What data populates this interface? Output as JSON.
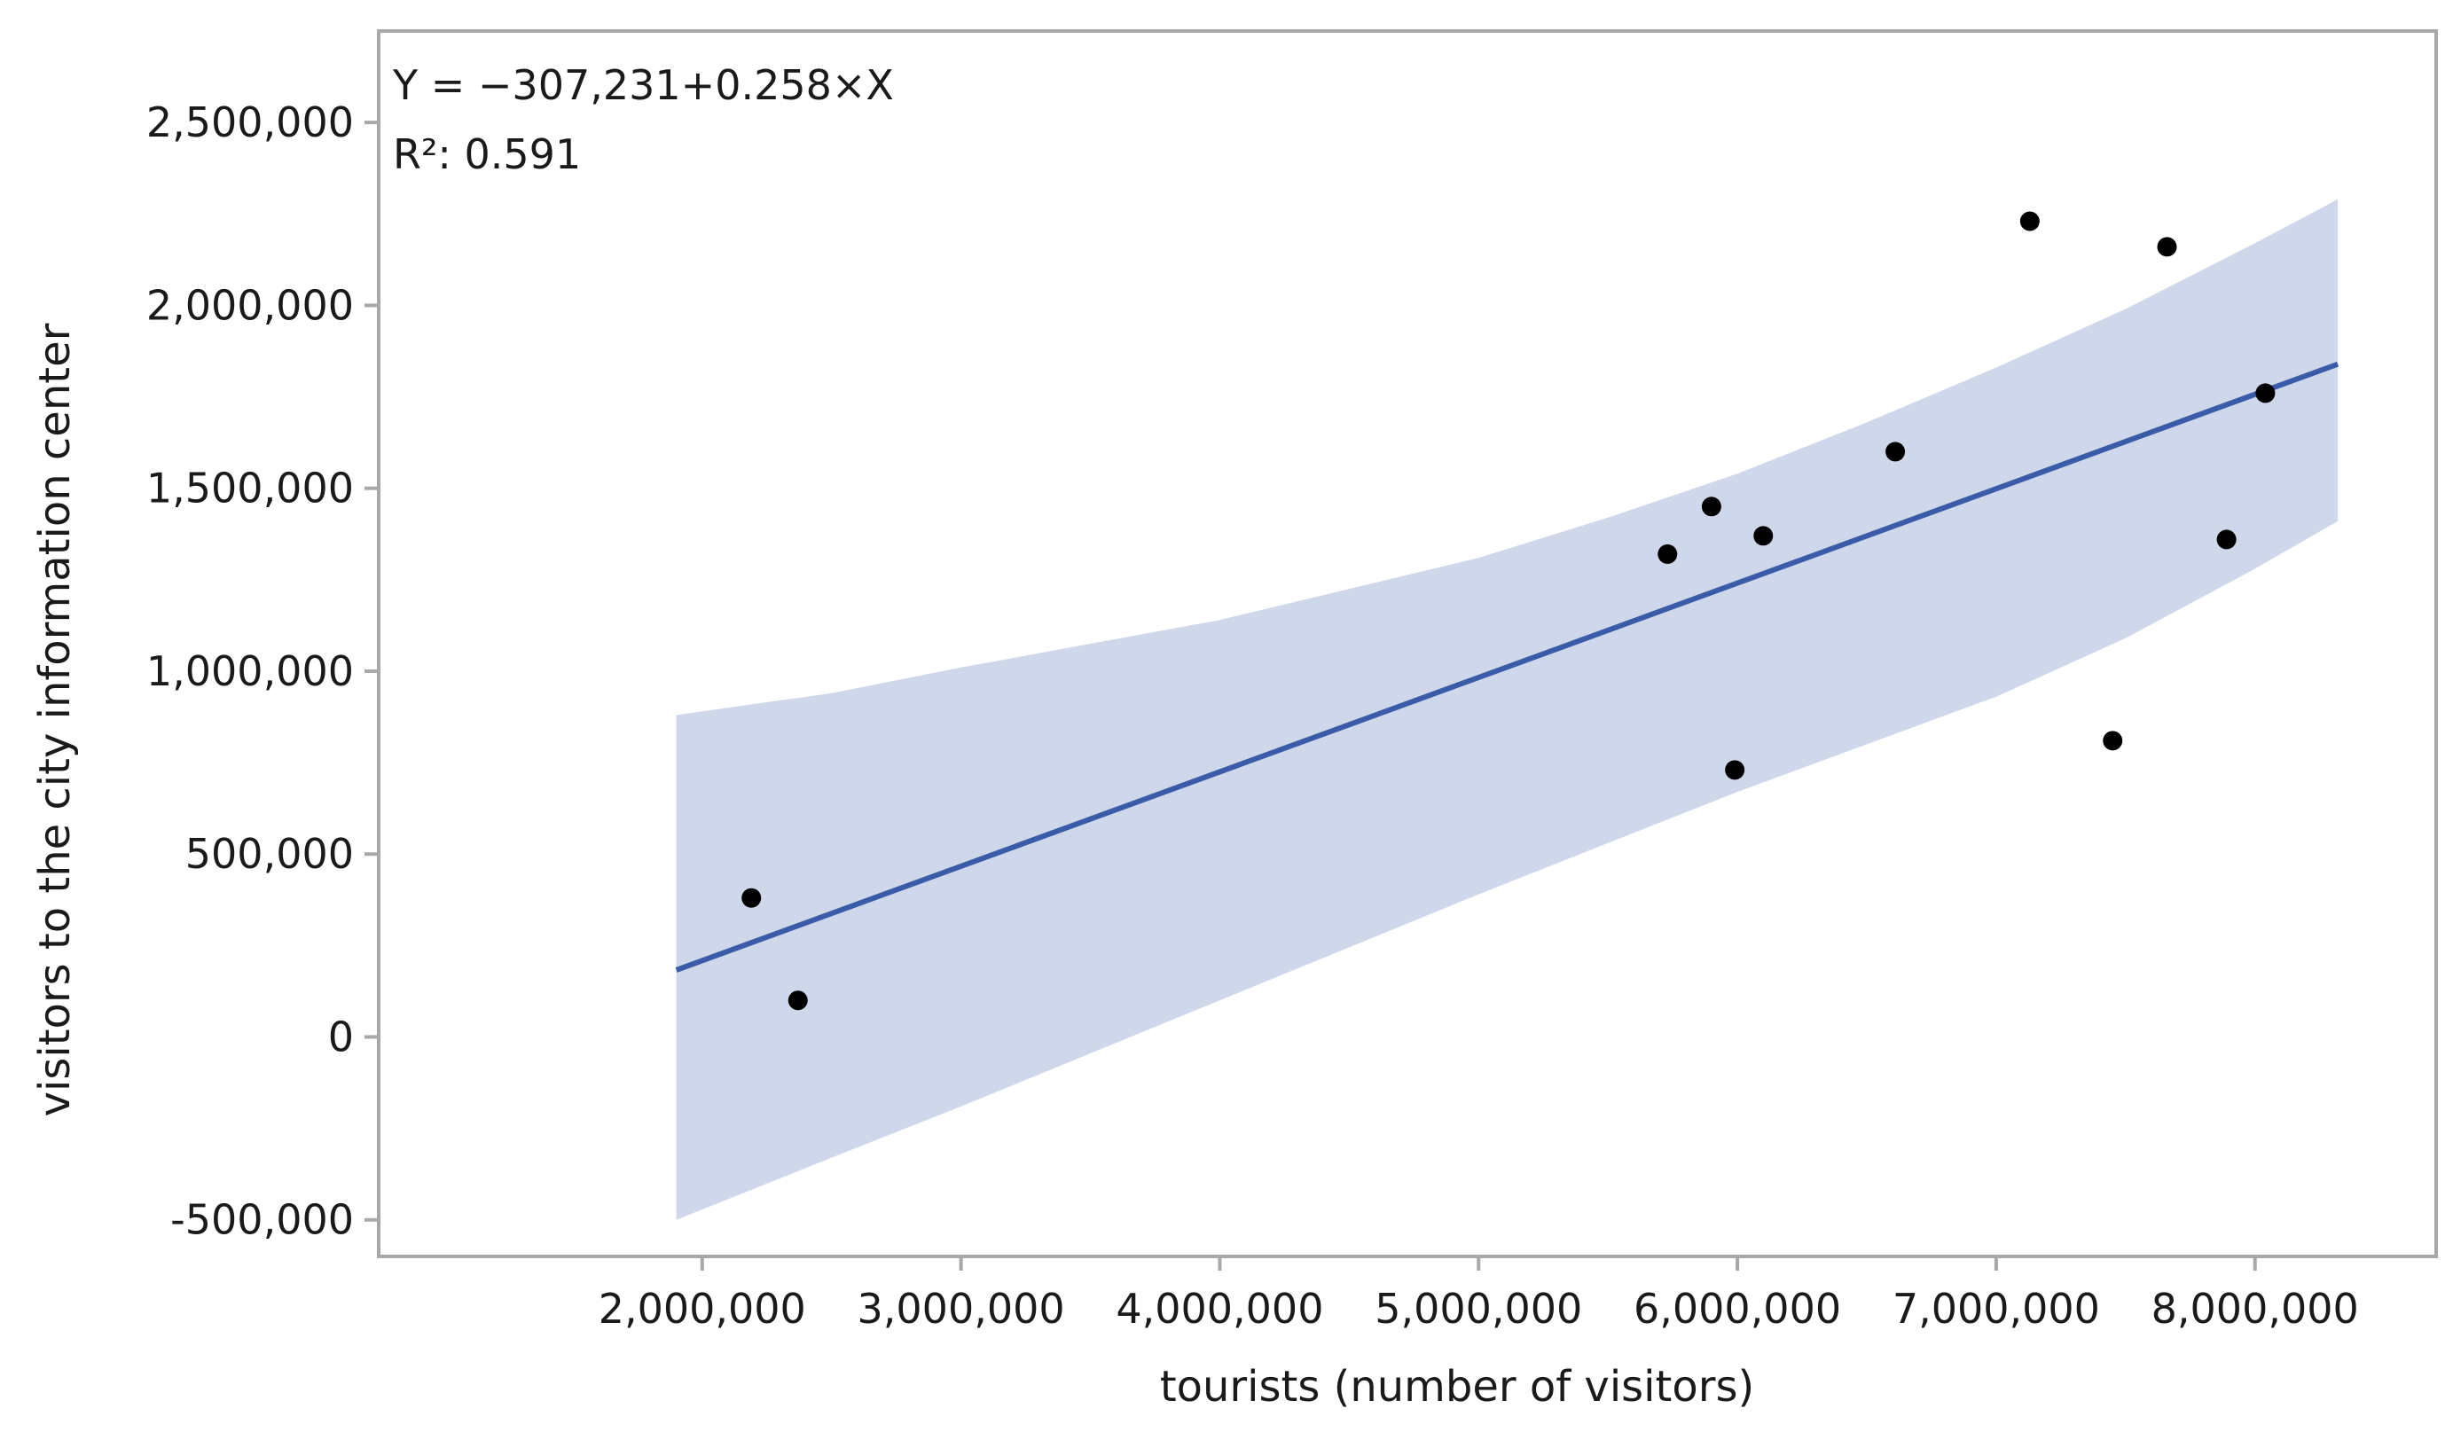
{
  "chart_data": {
    "type": "scatter",
    "xlabel": "tourists (number of visitors)",
    "ylabel": "visitors to the city information center",
    "xlim": [
      750000,
      8700000
    ],
    "ylim": [
      -600000,
      2750000
    ],
    "x_ticks": [
      2000000,
      3000000,
      4000000,
      5000000,
      6000000,
      7000000,
      8000000
    ],
    "x_tick_labels": [
      "2,000,000",
      "3,000,000",
      "4,000,000",
      "5,000,000",
      "6,000,000",
      "7,000,000",
      "8,000,000"
    ],
    "y_ticks": [
      -500000,
      0,
      500000,
      1000000,
      1500000,
      2000000,
      2500000
    ],
    "y_tick_labels": [
      "-500,000",
      "0",
      "500,000",
      "1,000,000",
      "1,500,000",
      "2,000,000",
      "2,500,000"
    ],
    "points": [
      {
        "x": 2190000,
        "y": 380000
      },
      {
        "x": 2370000,
        "y": 100000
      },
      {
        "x": 5730000,
        "y": 1320000
      },
      {
        "x": 5900000,
        "y": 1450000
      },
      {
        "x": 5990000,
        "y": 730000
      },
      {
        "x": 6100000,
        "y": 1370000
      },
      {
        "x": 6610000,
        "y": 1600000
      },
      {
        "x": 7130000,
        "y": 2230000
      },
      {
        "x": 7450000,
        "y": 810000
      },
      {
        "x": 7660000,
        "y": 2160000
      },
      {
        "x": 7890000,
        "y": 1360000
      },
      {
        "x": 8040000,
        "y": 1760000
      }
    ],
    "fit_line": {
      "intercept": -307231,
      "slope": 0.258,
      "x_range": [
        1900000,
        8320000
      ],
      "color": "#3a5ba7"
    },
    "confidence_band": {
      "x": [
        1900000,
        2500000,
        3000000,
        4000000,
        5000000,
        5500000,
        6000000,
        6500000,
        7000000,
        7500000,
        8000000,
        8320000
      ],
      "upper": [
        880000,
        940000,
        1010000,
        1140000,
        1310000,
        1420000,
        1540000,
        1680000,
        1830000,
        1990000,
        2170000,
        2290000
      ],
      "lower": [
        -500000,
        -330000,
        -190000,
        100000,
        390000,
        530000,
        670000,
        800000,
        930000,
        1090000,
        1280000,
        1410000
      ],
      "color": "#cfd8ea"
    },
    "annotation": {
      "equation": "Y = −307,231+0.258×X",
      "r2_label": "R²: 0.591"
    },
    "point_color": "#000000",
    "frame_color": "#a8a8a8"
  }
}
